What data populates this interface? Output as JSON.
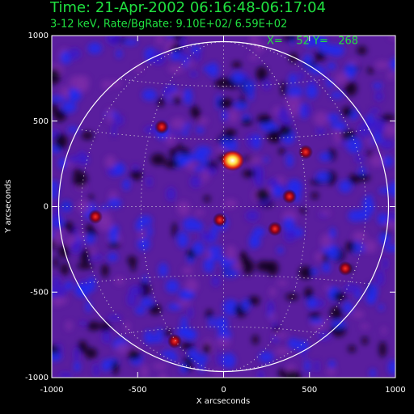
{
  "chart_data": {
    "type": "image",
    "title": "Time: 21-Apr-2002 06:16:48-06:17:04",
    "subtitle": "3-12 keV, Rate/BgRate:  9.10E+02/  6.59E+02",
    "annotation": "X=    52 Y=   268",
    "x_label": "X arcseconds",
    "y_label": "Y arcseconds",
    "xlim": [
      -1000,
      1000
    ],
    "ylim": [
      -1000,
      1000
    ],
    "xticks": [
      -1000,
      -500,
      0,
      500,
      1000
    ],
    "yticks": [
      -1000,
      -500,
      0,
      500,
      1000
    ]
  }
}
